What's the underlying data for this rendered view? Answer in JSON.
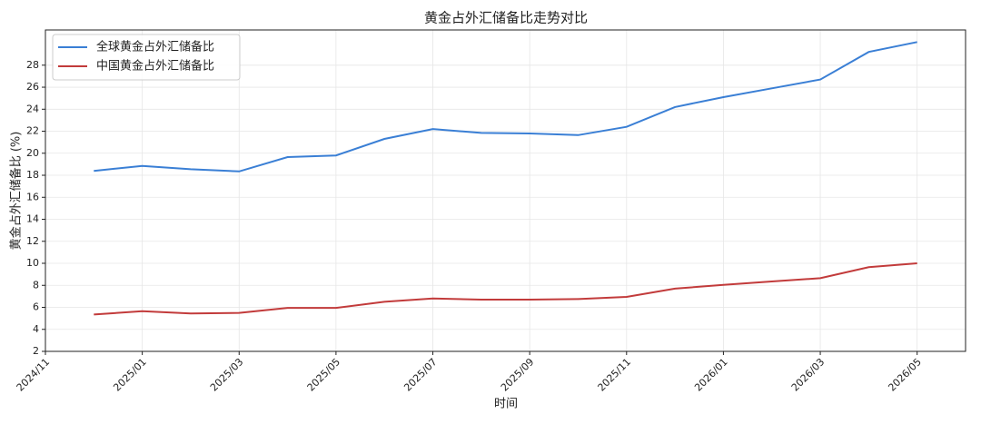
{
  "chart_data": {
    "type": "line",
    "title": "黄金占外汇储备比走势对比",
    "x_label": "时间",
    "y_label": "黄金占外汇储备比 (%)",
    "x": [
      "2024/12",
      "2025/01",
      "2025/02",
      "2025/03",
      "2025/04",
      "2025/05",
      "2025/06",
      "2025/07",
      "2025/08",
      "2025/09",
      "2025/10",
      "2025/11",
      "2025/12",
      "2026/01",
      "2026/02",
      "2026/03",
      "2026/04",
      "2026/05"
    ],
    "series": [
      {
        "name": "全球黄金占外汇储备比",
        "color": "#3a7fd5",
        "values": [
          18.4,
          18.85,
          18.55,
          18.35,
          19.65,
          19.8,
          21.3,
          22.2,
          21.85,
          21.8,
          21.65,
          22.4,
          24.2,
          25.1,
          25.9,
          26.7,
          29.2,
          30.1
        ]
      },
      {
        "name": "中国黄金占外汇储备比",
        "color": "#c23b3b",
        "values": [
          5.35,
          5.65,
          5.45,
          5.5,
          5.95,
          5.95,
          6.5,
          6.8,
          6.7,
          6.7,
          6.75,
          6.95,
          7.7,
          8.05,
          8.35,
          8.65,
          9.65,
          10.0
        ]
      }
    ],
    "xlim": [
      "2024/11",
      "2026/06"
    ],
    "xticks": [
      "2024/11",
      "2025/01",
      "2025/03",
      "2025/05",
      "2025/07",
      "2025/09",
      "2025/11",
      "2026/01",
      "2026/03",
      "2026/05"
    ],
    "ylim": [
      2,
      31.2
    ],
    "yticks": [
      2,
      4,
      6,
      8,
      10,
      12,
      14,
      16,
      18,
      20,
      22,
      24,
      26,
      28
    ],
    "grid": true,
    "legend": "upper left"
  }
}
